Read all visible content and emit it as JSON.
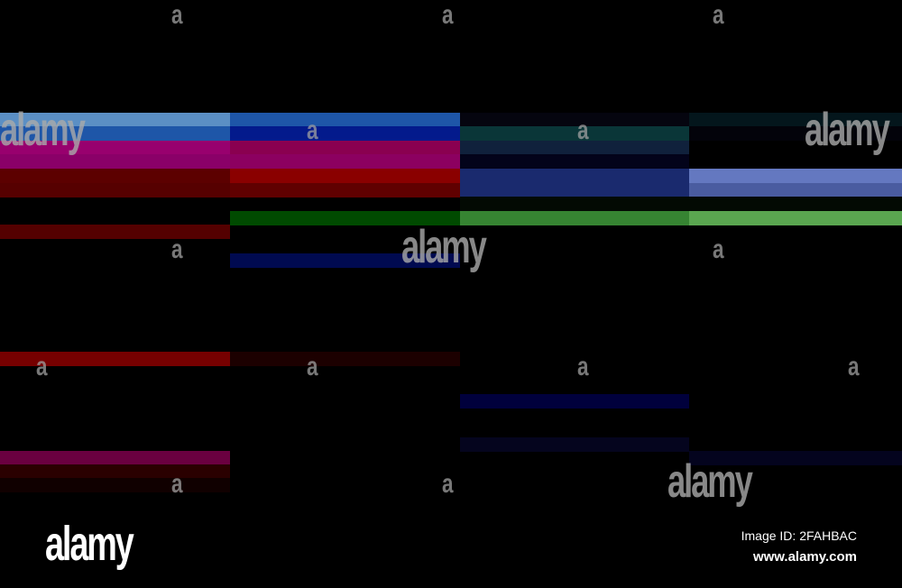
{
  "watermark": {
    "short": "a",
    "full": "alamy"
  },
  "footer": {
    "logo": "alamy",
    "image_id": "Image ID: 2FAHBAC",
    "url": "www.alamy.com"
  }
}
